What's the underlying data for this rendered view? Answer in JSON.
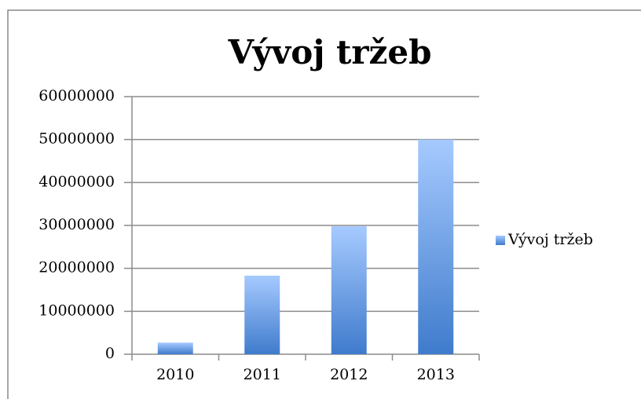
{
  "chart_data": {
    "type": "bar",
    "title": "Vývoj tržeb",
    "categories": [
      "2010",
      "2011",
      "2012",
      "2013"
    ],
    "series": [
      {
        "name": "Vývoj tržeb",
        "color": "#3f7bcc",
        "values": [
          2700000,
          18300000,
          29800000,
          50000000
        ]
      }
    ],
    "ylim": [
      0,
      60000000
    ],
    "yticks": [
      0,
      10000000,
      20000000,
      30000000,
      40000000,
      50000000,
      60000000
    ],
    "grid": true,
    "legend": "right"
  }
}
